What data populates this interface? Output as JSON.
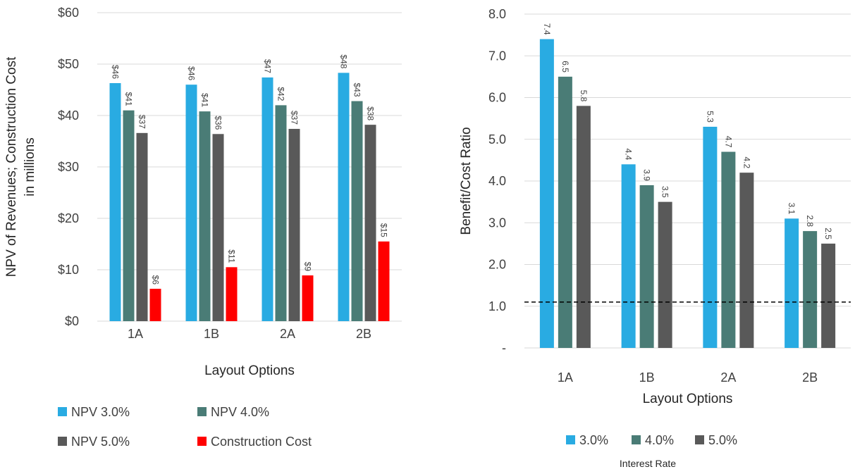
{
  "chart_data": [
    {
      "type": "bar",
      "categories": [
        "1A",
        "1B",
        "2A",
        "2B"
      ],
      "series": [
        {
          "name": "NPV 3.0%",
          "color": "#29ABE2",
          "values": [
            46.3,
            46.0,
            47.4,
            48.3
          ],
          "labels": [
            "$46",
            "$46",
            "$47",
            "$48"
          ]
        },
        {
          "name": "NPV 4.0%",
          "color": "#4A7C76",
          "values": [
            41.0,
            40.8,
            42.0,
            42.8
          ],
          "labels": [
            "$41",
            "$41",
            "$42",
            "$43"
          ]
        },
        {
          "name": "NPV 5.0%",
          "color": "#595959",
          "values": [
            36.6,
            36.4,
            37.4,
            38.2
          ],
          "labels": [
            "$37",
            "$36",
            "$37",
            "$38"
          ]
        },
        {
          "name": "Construction Cost",
          "color": "#FF0000",
          "values": [
            6.3,
            10.5,
            8.9,
            15.5
          ],
          "labels": [
            "$6",
            "$11",
            "$9",
            "$15"
          ]
        }
      ],
      "xlabel": "Layout Options",
      "ylabel": "NPV of Revenues; Construction Cost in millions",
      "ylim": [
        0,
        60
      ],
      "yticks": [
        0,
        10,
        20,
        30,
        40,
        50,
        60
      ],
      "ytick_labels": [
        "$0",
        "$10",
        "$20",
        "$30",
        "$40",
        "$50",
        "$60"
      ],
      "grid": true,
      "legend_position": "bottom",
      "legend_title": ""
    },
    {
      "type": "bar",
      "categories": [
        "1A",
        "1B",
        "2A",
        "2B"
      ],
      "series": [
        {
          "name": "3.0%",
          "color": "#29ABE2",
          "values": [
            7.4,
            4.4,
            5.3,
            3.1
          ],
          "labels": [
            "7.4",
            "4.4",
            "5.3",
            "3.1"
          ]
        },
        {
          "name": "4.0%",
          "color": "#4A7C76",
          "values": [
            6.5,
            3.9,
            4.7,
            2.8
          ],
          "labels": [
            "6.5",
            "3.9",
            "4.7",
            "2.8"
          ]
        },
        {
          "name": "5.0%",
          "color": "#595959",
          "values": [
            5.8,
            3.5,
            4.2,
            2.5
          ],
          "labels": [
            "5.8",
            "3.5",
            "4.2",
            "2.5"
          ]
        }
      ],
      "xlabel": "Layout Options",
      "ylabel": "Benefit/Cost Ratio",
      "ylim": [
        0,
        8
      ],
      "yticks": [
        0,
        1,
        2,
        3,
        4,
        5,
        6,
        7,
        8
      ],
      "ytick_labels": [
        "-",
        "1.0",
        "2.0",
        "3.0",
        "4.0",
        "5.0",
        "6.0",
        "7.0",
        "8.0"
      ],
      "grid": true,
      "reference_line": 1.1,
      "legend_position": "bottom",
      "legend_title": "Interest Rate"
    }
  ]
}
